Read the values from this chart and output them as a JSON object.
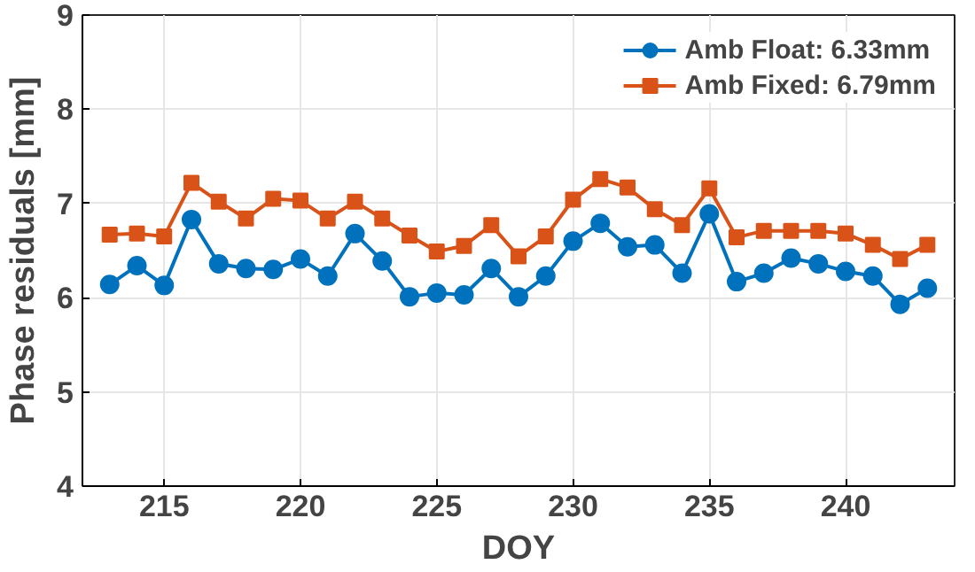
{
  "chart_data": {
    "type": "line",
    "xlabel": "DOY",
    "ylabel": "Phase residuals [mm]",
    "x": [
      213,
      214,
      215,
      216,
      217,
      218,
      219,
      220,
      221,
      222,
      223,
      224,
      225,
      226,
      227,
      228,
      229,
      230,
      231,
      232,
      233,
      234,
      235,
      236,
      237,
      238,
      239,
      240,
      241,
      242,
      243
    ],
    "series": [
      {
        "name": "Amb Float: 6.33mm",
        "color": "#0072bd",
        "marker": "circle",
        "values": [
          6.14,
          6.34,
          6.13,
          6.83,
          6.36,
          6.31,
          6.3,
          6.41,
          6.23,
          6.68,
          6.39,
          6.01,
          6.05,
          6.03,
          6.31,
          6.01,
          6.23,
          6.6,
          6.79,
          6.54,
          6.56,
          6.26,
          6.89,
          6.17,
          6.26,
          6.42,
          6.36,
          6.28,
          6.23,
          5.93,
          6.1
        ]
      },
      {
        "name": "Amb Fixed: 6.79mm",
        "color": "#d95319",
        "marker": "square",
        "values": [
          6.67,
          6.68,
          6.65,
          7.22,
          7.02,
          6.84,
          7.05,
          7.03,
          6.84,
          7.02,
          6.84,
          6.66,
          6.49,
          6.55,
          6.77,
          6.44,
          6.65,
          7.04,
          7.26,
          7.17,
          6.94,
          6.77,
          7.16,
          6.64,
          6.71,
          6.71,
          6.71,
          6.68,
          6.56,
          6.41,
          6.56
        ]
      }
    ],
    "xlim": [
      212,
      244
    ],
    "xticks": [
      215,
      220,
      225,
      230,
      235,
      240
    ],
    "ylim": [
      4,
      9
    ],
    "yticks": [
      4,
      5,
      6,
      7,
      8,
      9
    ],
    "grid": true,
    "legend": "top right",
    "line_style": "solid"
  }
}
